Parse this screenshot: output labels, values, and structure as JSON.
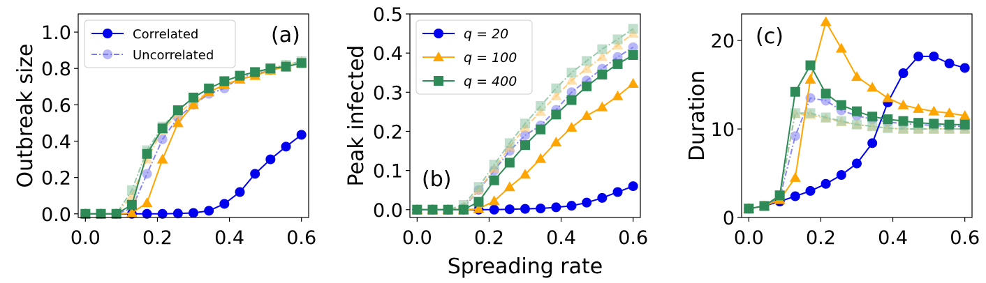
{
  "colors": {
    "blue": "#0000ee",
    "orange": "#ffa500",
    "green": "#2e8b57",
    "blue_faded": "#7b7bf3",
    "orange_faded": "#ffc870",
    "green_faded": "#8ec5a4"
  },
  "chart_data": [
    {
      "type": "line",
      "panel_label": "(a)",
      "xlabel": "",
      "ylabel": "Outbreak size",
      "xlim": [
        -0.02,
        0.62
      ],
      "ylim": [
        -0.02,
        1.1
      ],
      "xticks": [
        {
          "v": 0.0,
          "label": "0.0"
        },
        {
          "v": 0.2,
          "label": "0.2"
        },
        {
          "v": 0.4,
          "label": "0.4"
        },
        {
          "v": 0.6,
          "label": "0.6"
        }
      ],
      "yticks": [
        {
          "v": 0.0,
          "label": "0.0"
        },
        {
          "v": 0.2,
          "label": "0.2"
        },
        {
          "v": 0.4,
          "label": "0.4"
        },
        {
          "v": 0.6,
          "label": "0.6"
        },
        {
          "v": 0.8,
          "label": "0.8"
        },
        {
          "v": 1.0,
          "label": "1.0"
        }
      ],
      "legend": {
        "position": "top-left",
        "entries": [
          {
            "label": "Correlated",
            "style": "solid",
            "marker": "circle",
            "color": "blue"
          },
          {
            "label": "Uncorrelated",
            "style": "dashdot",
            "marker": "circle",
            "color": "blue_faded"
          }
        ]
      },
      "series": [
        {
          "id": "q20-corr",
          "color": "blue",
          "marker": "circle",
          "style": "solid",
          "x": [
            0,
            0.043,
            0.086,
            0.129,
            0.171,
            0.214,
            0.257,
            0.3,
            0.343,
            0.386,
            0.429,
            0.471,
            0.514,
            0.557,
            0.6
          ],
          "y": [
            0,
            0,
            0,
            0,
            0,
            0,
            0.002,
            0.005,
            0.017,
            0.055,
            0.12,
            0.22,
            0.3,
            0.37,
            0.435
          ]
        },
        {
          "id": "q20-unc",
          "color": "blue_faded",
          "marker": "circle",
          "style": "dashdot",
          "x": [
            0,
            0.043,
            0.086,
            0.129,
            0.171,
            0.214,
            0.257,
            0.3,
            0.343,
            0.386,
            0.429,
            0.471,
            0.514,
            0.557,
            0.6
          ],
          "y": [
            0,
            0,
            0,
            0.03,
            0.22,
            0.41,
            0.53,
            0.6,
            0.66,
            0.69,
            0.75,
            0.77,
            0.79,
            0.81,
            0.83
          ]
        },
        {
          "id": "q100-corr",
          "color": "orange",
          "marker": "triangle",
          "style": "solid",
          "x": [
            0,
            0.043,
            0.086,
            0.129,
            0.171,
            0.214,
            0.257,
            0.3,
            0.343,
            0.386,
            0.429,
            0.471,
            0.514,
            0.557,
            0.6
          ],
          "y": [
            0,
            0,
            0,
            0.005,
            0.06,
            0.3,
            0.5,
            0.6,
            0.67,
            0.71,
            0.74,
            0.76,
            0.79,
            0.81,
            0.83
          ]
        },
        {
          "id": "q100-unc",
          "color": "orange_faded",
          "marker": "triangle",
          "style": "dashdot",
          "x": [
            0,
            0.043,
            0.086,
            0.129,
            0.171,
            0.214,
            0.257,
            0.3,
            0.343,
            0.386,
            0.429,
            0.471,
            0.514,
            0.557,
            0.6
          ],
          "y": [
            0,
            0,
            0,
            0.1,
            0.3,
            0.46,
            0.55,
            0.62,
            0.67,
            0.71,
            0.74,
            0.77,
            0.8,
            0.82,
            0.84
          ]
        },
        {
          "id": "q400-corr",
          "color": "green",
          "marker": "square",
          "style": "solid",
          "x": [
            0,
            0.043,
            0.086,
            0.129,
            0.171,
            0.214,
            0.257,
            0.3,
            0.343,
            0.386,
            0.429,
            0.471,
            0.514,
            0.557,
            0.6
          ],
          "y": [
            0,
            0,
            0,
            0.05,
            0.33,
            0.47,
            0.57,
            0.64,
            0.69,
            0.73,
            0.76,
            0.78,
            0.8,
            0.81,
            0.83
          ]
        },
        {
          "id": "q400-unc",
          "color": "green_faded",
          "marker": "square",
          "style": "dashdot",
          "x": [
            0,
            0.043,
            0.086,
            0.129,
            0.171,
            0.214,
            0.257,
            0.3,
            0.343,
            0.386,
            0.429,
            0.471,
            0.514,
            0.557,
            0.6
          ],
          "y": [
            0,
            0,
            0,
            0.13,
            0.35,
            0.48,
            0.57,
            0.64,
            0.69,
            0.73,
            0.76,
            0.78,
            0.8,
            0.82,
            0.84
          ]
        }
      ]
    },
    {
      "type": "line",
      "panel_label": "(b)",
      "xlabel": "Spreading rate",
      "ylabel": "Peak infected",
      "xlim": [
        -0.02,
        0.62
      ],
      "ylim": [
        -0.02,
        0.5
      ],
      "xticks": [
        {
          "v": 0.0,
          "label": "0.0"
        },
        {
          "v": 0.2,
          "label": "0.2"
        },
        {
          "v": 0.4,
          "label": "0.4"
        },
        {
          "v": 0.6,
          "label": "0.6"
        }
      ],
      "yticks": [
        {
          "v": 0.0,
          "label": "0.0"
        },
        {
          "v": 0.1,
          "label": "0.1"
        },
        {
          "v": 0.2,
          "label": "0.2"
        },
        {
          "v": 0.3,
          "label": "0.3"
        },
        {
          "v": 0.4,
          "label": "0.4"
        },
        {
          "v": 0.5,
          "label": "0.5"
        }
      ],
      "legend": {
        "position": "top-left",
        "entries": [
          {
            "label": "q = 20",
            "color": "blue",
            "marker": "circle"
          },
          {
            "label": "q = 100",
            "color": "orange",
            "marker": "triangle"
          },
          {
            "label": "q = 400",
            "color": "green",
            "marker": "square"
          }
        ]
      },
      "series": [
        {
          "id": "q20-corr",
          "color": "blue",
          "marker": "circle",
          "style": "solid",
          "x": [
            0,
            0.043,
            0.086,
            0.129,
            0.171,
            0.214,
            0.257,
            0.3,
            0.343,
            0.386,
            0.429,
            0.471,
            0.514,
            0.557,
            0.6
          ],
          "y": [
            0,
            0,
            0,
            0,
            0,
            0,
            0.001,
            0.002,
            0.003,
            0.006,
            0.01,
            0.018,
            0.03,
            0.045,
            0.06
          ]
        },
        {
          "id": "q20-unc",
          "color": "blue_faded",
          "marker": "circle",
          "style": "dashdot",
          "x": [
            0,
            0.043,
            0.086,
            0.129,
            0.171,
            0.214,
            0.257,
            0.3,
            0.343,
            0.386,
            0.429,
            0.471,
            0.514,
            0.557,
            0.6
          ],
          "y": [
            0,
            0,
            0,
            0.005,
            0.05,
            0.1,
            0.15,
            0.19,
            0.215,
            0.255,
            0.3,
            0.33,
            0.36,
            0.39,
            0.415
          ]
        },
        {
          "id": "q100-corr",
          "color": "orange",
          "marker": "triangle",
          "style": "solid",
          "x": [
            0,
            0.043,
            0.086,
            0.129,
            0.171,
            0.214,
            0.257,
            0.3,
            0.343,
            0.386,
            0.429,
            0.471,
            0.514,
            0.557,
            0.6
          ],
          "y": [
            0,
            0,
            0,
            0,
            0.002,
            0.022,
            0.058,
            0.09,
            0.13,
            0.172,
            0.21,
            0.24,
            0.262,
            0.29,
            0.322
          ]
        },
        {
          "id": "q100-unc",
          "color": "orange_faded",
          "marker": "triangle",
          "style": "dashdot",
          "x": [
            0,
            0.043,
            0.086,
            0.129,
            0.171,
            0.214,
            0.257,
            0.3,
            0.343,
            0.386,
            0.429,
            0.471,
            0.514,
            0.557,
            0.6
          ],
          "y": [
            0,
            0,
            0,
            0.008,
            0.05,
            0.105,
            0.16,
            0.21,
            0.25,
            0.29,
            0.33,
            0.36,
            0.39,
            0.42,
            0.45
          ]
        },
        {
          "id": "q400-corr",
          "color": "green",
          "marker": "square",
          "style": "solid",
          "x": [
            0,
            0.043,
            0.086,
            0.129,
            0.171,
            0.214,
            0.257,
            0.3,
            0.343,
            0.386,
            0.429,
            0.471,
            0.514,
            0.557,
            0.6
          ],
          "y": [
            0,
            0,
            0,
            0,
            0.02,
            0.075,
            0.12,
            0.165,
            0.205,
            0.243,
            0.28,
            0.315,
            0.345,
            0.372,
            0.395
          ]
        },
        {
          "id": "q400-unc",
          "color": "green_faded",
          "marker": "square",
          "style": "dashdot",
          "x": [
            0,
            0.043,
            0.086,
            0.129,
            0.171,
            0.214,
            0.257,
            0.3,
            0.343,
            0.386,
            0.429,
            0.471,
            0.514,
            0.557,
            0.6
          ],
          "y": [
            0,
            0,
            0,
            0.012,
            0.058,
            0.115,
            0.17,
            0.22,
            0.265,
            0.31,
            0.35,
            0.38,
            0.41,
            0.435,
            0.462
          ]
        }
      ]
    },
    {
      "type": "line",
      "panel_label": "(c)",
      "xlabel": "",
      "ylabel": "Duration",
      "xlim": [
        -0.02,
        0.62
      ],
      "ylim": [
        0,
        23
      ],
      "xticks": [
        {
          "v": 0.0,
          "label": "0.0"
        },
        {
          "v": 0.2,
          "label": "0.2"
        },
        {
          "v": 0.4,
          "label": "0.4"
        },
        {
          "v": 0.6,
          "label": "0.6"
        }
      ],
      "yticks": [
        {
          "v": 0,
          "label": "0"
        },
        {
          "v": 10,
          "label": "10"
        },
        {
          "v": 20,
          "label": "20"
        }
      ],
      "series": [
        {
          "id": "q20-corr",
          "color": "blue",
          "marker": "circle",
          "style": "solid",
          "x": [
            0,
            0.043,
            0.086,
            0.129,
            0.171,
            0.214,
            0.257,
            0.3,
            0.343,
            0.386,
            0.429,
            0.471,
            0.514,
            0.557,
            0.6
          ],
          "y": [
            1,
            1.3,
            1.8,
            2.4,
            3.0,
            3.8,
            4.8,
            6.1,
            8.4,
            13.0,
            16.3,
            18.2,
            18.2,
            17.4,
            16.9
          ]
        },
        {
          "id": "q20-unc",
          "color": "blue_faded",
          "marker": "circle",
          "style": "dashdot",
          "x": [
            0,
            0.043,
            0.086,
            0.129,
            0.171,
            0.214,
            0.257,
            0.3,
            0.343,
            0.386,
            0.429,
            0.471,
            0.514,
            0.557,
            0.6
          ],
          "y": [
            1,
            1.3,
            2.2,
            9.2,
            13.5,
            13.2,
            12.1,
            11.5,
            11.1,
            10.8,
            10.6,
            10.5,
            10.4,
            10.3,
            10.3
          ]
        },
        {
          "id": "q100-corr",
          "color": "orange",
          "marker": "triangle",
          "style": "solid",
          "x": [
            0,
            0.043,
            0.086,
            0.129,
            0.171,
            0.214,
            0.257,
            0.3,
            0.343,
            0.386,
            0.429,
            0.471,
            0.514,
            0.557,
            0.6
          ],
          "y": [
            1,
            1.3,
            2.0,
            4.5,
            15.6,
            22.1,
            19.1,
            15.9,
            14.7,
            13.5,
            12.7,
            12.3,
            12.0,
            11.8,
            11.5
          ]
        },
        {
          "id": "q100-unc",
          "color": "orange_faded",
          "marker": "triangle",
          "style": "dashdot",
          "x": [
            0,
            0.043,
            0.086,
            0.129,
            0.171,
            0.214,
            0.257,
            0.3,
            0.343,
            0.386,
            0.429,
            0.471,
            0.514,
            0.557,
            0.6
          ],
          "y": [
            1,
            1.3,
            2.5,
            11.7,
            11.6,
            11.2,
            10.8,
            10.5,
            10.3,
            10.1,
            10.0,
            10.0,
            10.0,
            10.0,
            10.0
          ]
        },
        {
          "id": "q400-corr",
          "color": "green",
          "marker": "square",
          "style": "solid",
          "x": [
            0,
            0.043,
            0.086,
            0.129,
            0.171,
            0.214,
            0.257,
            0.3,
            0.343,
            0.386,
            0.429,
            0.471,
            0.514,
            0.557,
            0.6
          ],
          "y": [
            1,
            1.3,
            2.5,
            14.2,
            17.2,
            14.0,
            12.7,
            12.0,
            11.4,
            11.1,
            10.9,
            10.7,
            10.6,
            10.5,
            10.5
          ]
        },
        {
          "id": "q400-unc",
          "color": "green_faded",
          "marker": "square",
          "style": "dashdot",
          "x": [
            0,
            0.043,
            0.086,
            0.129,
            0.171,
            0.214,
            0.257,
            0.3,
            0.343,
            0.386,
            0.429,
            0.471,
            0.514,
            0.557,
            0.6
          ],
          "y": [
            1,
            1.3,
            2.5,
            11.8,
            11.8,
            11.3,
            10.9,
            10.5,
            10.3,
            10.1,
            10.0,
            10.0,
            10.0,
            10.0,
            10.0
          ]
        }
      ]
    }
  ]
}
